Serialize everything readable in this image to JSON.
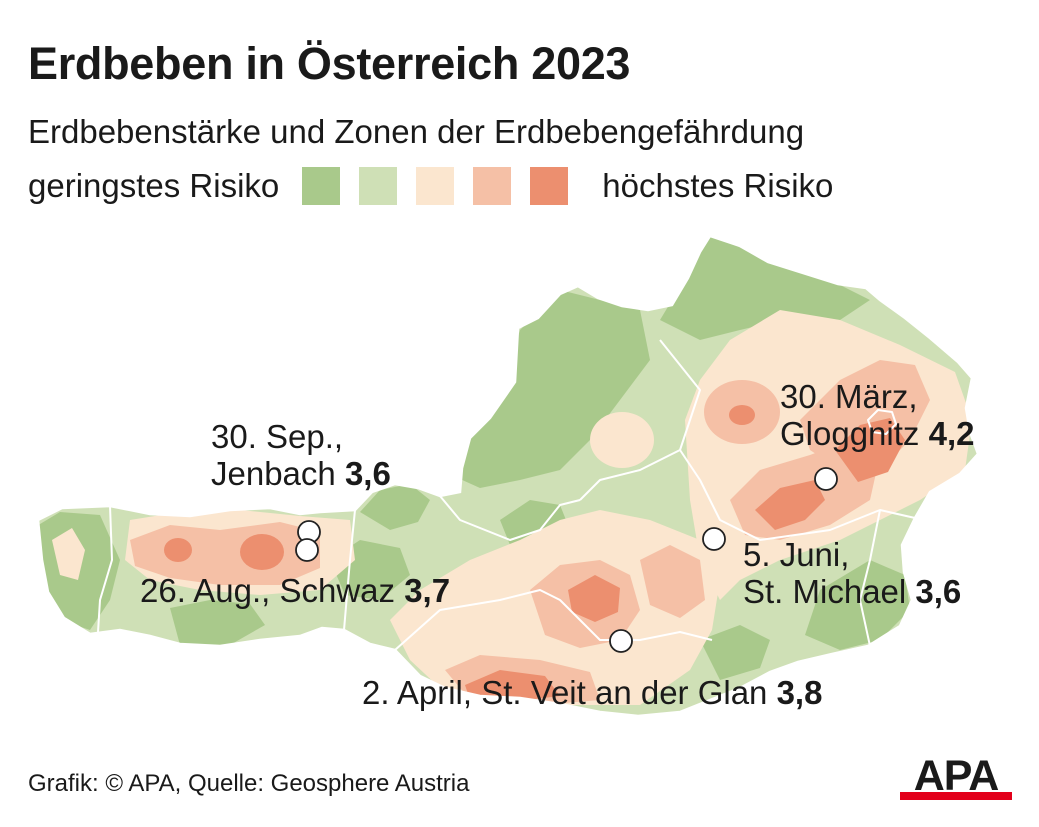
{
  "title": "Erdbeben in Österreich 2023",
  "subtitle": "Erdbebenstärke und Zonen der Erdbebengefährdung",
  "legend": {
    "low_label": "geringstes Risiko",
    "high_label": "höchstes Risiko",
    "colors": [
      "#a9c98b",
      "#cfe0b6",
      "#fbe6cf",
      "#f5c0a6",
      "#ec8f6f"
    ]
  },
  "quakes": [
    {
      "date": "30. Sep.,",
      "place": "Jenbach",
      "magnitude": "3,6"
    },
    {
      "date": "26. Aug.,",
      "place": "Schwaz",
      "magnitude": "3,7"
    },
    {
      "date": "30. März,",
      "place": "Gloggnitz",
      "magnitude": "4,2"
    },
    {
      "date": "5. Juni,",
      "place": "St. Michael",
      "magnitude": "3,6"
    },
    {
      "date": "2. April,",
      "place": "St. Veit an der Glan",
      "magnitude": "3,8"
    }
  ],
  "source": "Grafik: © APA, Quelle: Geosphere Austria",
  "logo_text": "APA"
}
